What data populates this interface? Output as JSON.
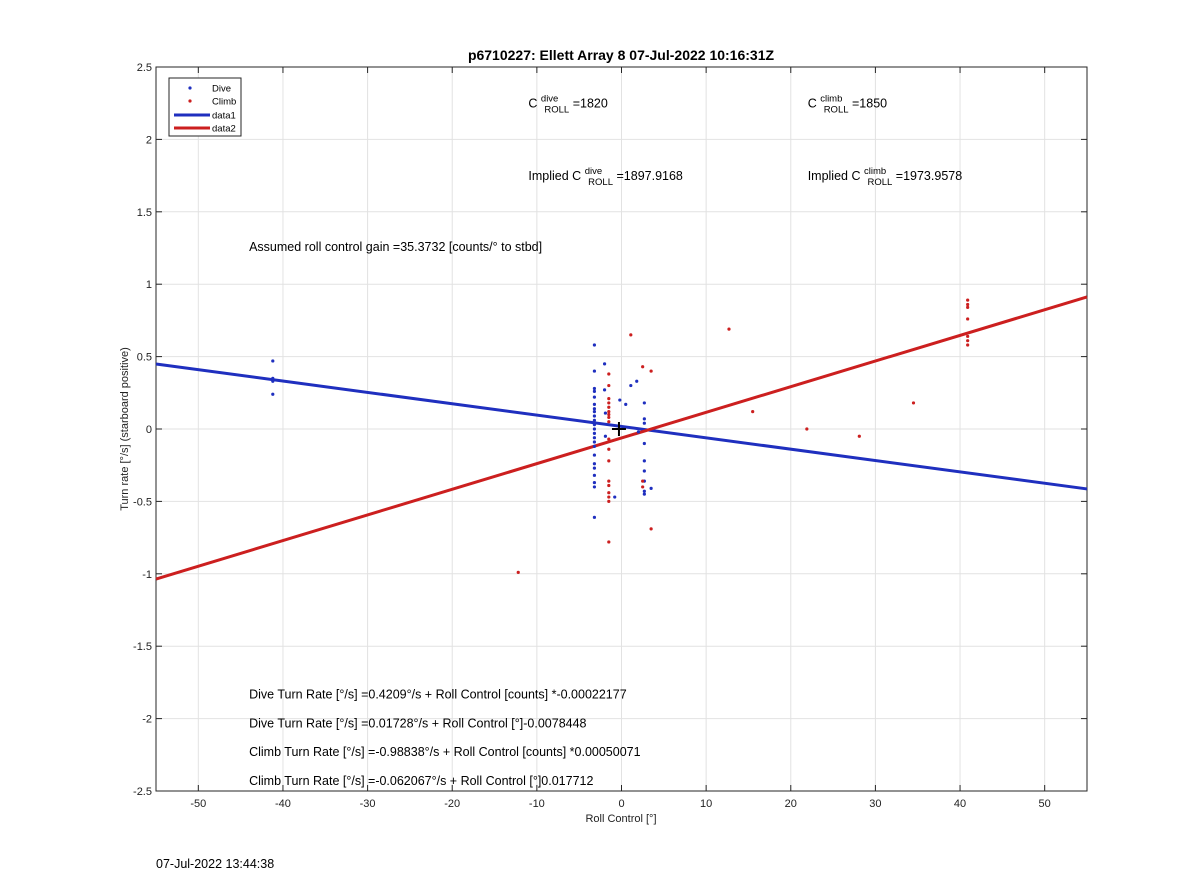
{
  "colors": {
    "dive": "#1f2fbf",
    "climb": "#cc1f1f",
    "grid": "#e2e2e2",
    "axis": "#262626"
  },
  "footer": {
    "timestamp": "07-Jul-2022 13:44:38"
  },
  "chart_data": {
    "type": "scatter",
    "title": "p6710227: Ellett Array 8 07-Jul-2022 10:16:31Z",
    "xlabel": "Roll Control [°]",
    "ylabel": "Turn rate [°/s] (starboard positive)",
    "xlim": [
      -55,
      55
    ],
    "ylim": [
      -2.5,
      2.5
    ],
    "xticks": [
      -50,
      -40,
      -30,
      -20,
      -10,
      0,
      10,
      20,
      30,
      40,
      50
    ],
    "xtick_labels": [
      "-50",
      "-40",
      "-30",
      "-20",
      "-10",
      "0",
      "10",
      "20",
      "30",
      "40",
      "50"
    ],
    "yticks": [
      -2.5,
      -2,
      -1.5,
      -1,
      -0.5,
      0,
      0.5,
      1,
      1.5,
      2,
      2.5
    ],
    "ytick_labels": [
      "-2.5",
      "-2",
      "-1.5",
      "-1",
      "-0.5",
      "0",
      "0.5",
      "1",
      "1.5",
      "2",
      "2.5"
    ],
    "grid": true,
    "legend_position": "top-left",
    "legend": [
      {
        "label": "Dive",
        "kind": "marker",
        "color": "#1f2fbf"
      },
      {
        "label": "Climb",
        "kind": "marker",
        "color": "#cc1f1f"
      },
      {
        "label": "data1",
        "kind": "line",
        "color": "#1f2fbf"
      },
      {
        "label": "data2",
        "kind": "line",
        "color": "#cc1f1f"
      }
    ],
    "series": [
      {
        "name": "Dive",
        "kind": "points",
        "color": "#1f2fbf",
        "points": [
          [
            -41.2,
            0.47
          ],
          [
            -41.2,
            0.35
          ],
          [
            -41.2,
            0.33
          ],
          [
            -41.2,
            0.24
          ],
          [
            -3.2,
            0.58
          ],
          [
            -3.2,
            0.4
          ],
          [
            -3.2,
            0.28
          ],
          [
            -3.2,
            0.26
          ],
          [
            -3.2,
            0.22
          ],
          [
            -3.2,
            0.17
          ],
          [
            -3.2,
            0.14
          ],
          [
            -3.2,
            0.12
          ],
          [
            -3.2,
            0.09
          ],
          [
            -3.2,
            0.06
          ],
          [
            -3.2,
            0.03
          ],
          [
            -3.2,
            0.0
          ],
          [
            -3.2,
            -0.03
          ],
          [
            -3.2,
            -0.06
          ],
          [
            -3.2,
            -0.09
          ],
          [
            -3.2,
            -0.12
          ],
          [
            -3.2,
            -0.18
          ],
          [
            -3.2,
            -0.24
          ],
          [
            -3.2,
            -0.27
          ],
          [
            -3.2,
            -0.32
          ],
          [
            -3.2,
            -0.37
          ],
          [
            -3.2,
            -0.4
          ],
          [
            -3.2,
            -0.61
          ],
          [
            -2.0,
            0.45
          ],
          [
            -2.0,
            0.27
          ],
          [
            -1.9,
            0.11
          ],
          [
            -1.9,
            -0.05
          ],
          [
            -0.8,
            -0.47
          ],
          [
            -0.2,
            0.2
          ],
          [
            0.5,
            0.17
          ],
          [
            1.1,
            0.3
          ],
          [
            1.8,
            0.33
          ],
          [
            2.7,
            0.18
          ],
          [
            2.7,
            0.07
          ],
          [
            2.7,
            0.04
          ],
          [
            2.7,
            -0.1
          ],
          [
            2.7,
            -0.22
          ],
          [
            2.7,
            -0.29
          ],
          [
            2.7,
            -0.36
          ],
          [
            2.7,
            -0.43
          ],
          [
            2.7,
            -0.45
          ],
          [
            3.5,
            -0.41
          ],
          [
            2.0,
            -0.02
          ]
        ]
      },
      {
        "name": "Climb",
        "kind": "points",
        "color": "#cc1f1f",
        "points": [
          [
            -12.2,
            -0.99
          ],
          [
            -1.5,
            0.38
          ],
          [
            -1.5,
            0.3
          ],
          [
            -1.5,
            0.21
          ],
          [
            -1.5,
            0.18
          ],
          [
            -1.5,
            0.15
          ],
          [
            -1.5,
            0.12
          ],
          [
            -1.5,
            0.1
          ],
          [
            -1.5,
            0.08
          ],
          [
            -1.5,
            0.05
          ],
          [
            -1.5,
            -0.07
          ],
          [
            -1.5,
            -0.14
          ],
          [
            -1.5,
            -0.22
          ],
          [
            -1.5,
            -0.36
          ],
          [
            -1.5,
            -0.39
          ],
          [
            -1.5,
            -0.44
          ],
          [
            -1.5,
            -0.47
          ],
          [
            -1.5,
            -0.5
          ],
          [
            -1.5,
            -0.78
          ],
          [
            1.1,
            0.65
          ],
          [
            2.5,
            0.43
          ],
          [
            2.5,
            -0.36
          ],
          [
            2.5,
            -0.4
          ],
          [
            3.5,
            0.4
          ],
          [
            3.5,
            -0.69
          ],
          [
            12.7,
            0.69
          ],
          [
            15.5,
            0.12
          ],
          [
            21.9,
            0.0
          ],
          [
            28.1,
            -0.05
          ],
          [
            34.5,
            0.18
          ],
          [
            40.9,
            0.89
          ],
          [
            40.9,
            0.86
          ],
          [
            40.9,
            0.84
          ],
          [
            40.9,
            0.76
          ],
          [
            40.9,
            0.64
          ],
          [
            40.9,
            0.61
          ],
          [
            40.9,
            0.58
          ]
        ]
      },
      {
        "name": "data1",
        "kind": "line",
        "color": "#1f2fbf",
        "points": [
          [
            -55,
            0.4489
          ],
          [
            55,
            -0.4139
          ]
        ]
      },
      {
        "name": "data2",
        "kind": "line",
        "color": "#cc1f1f",
        "points": [
          [
            -55,
            -1.0362
          ],
          [
            55,
            0.9122
          ]
        ]
      }
    ],
    "marker": {
      "x": -0.3,
      "y": 0.0,
      "symbol": "+"
    },
    "annotations": {
      "c_dive": {
        "base": "C",
        "sup": "dive",
        "sub": "ROLL",
        "suffix": " =1820",
        "x": -11,
        "y": 2.22
      },
      "c_climb": {
        "base": "C",
        "sup": "climb",
        "sub": "ROLL",
        "suffix": " =1850",
        "x": 22,
        "y": 2.22
      },
      "implied_dive": {
        "prefix": "Implied ",
        "base": "C",
        "sup": "dive",
        "sub": "ROLL",
        "suffix": " =1897.9168",
        "x": -11,
        "y": 1.72
      },
      "implied_climb": {
        "prefix": "Implied ",
        "base": "C",
        "sup": "climb",
        "sub": "ROLL",
        "suffix": " =1973.9578",
        "x": 22,
        "y": 1.72
      },
      "gain": {
        "text": "Assumed roll control gain =35.3732 [counts/° to stbd]",
        "x": -44,
        "y": 1.23
      },
      "fit1": {
        "text": "Dive Turn Rate [°/s] =0.4209°/s + Roll Control [counts] *-0.00022177",
        "x": -44,
        "y": -1.86
      },
      "fit2": {
        "text": "Dive Turn Rate [°/s] =0.01728°/s + Roll Control [°]-0.0078448",
        "x": -44,
        "y": -2.06
      },
      "fit3": {
        "text": "Climb Turn Rate [°/s] =-0.98838°/s + Roll Control [counts] *0.00050071",
        "x": -44,
        "y": -2.26
      },
      "fit4": {
        "text": "Climb Turn Rate [°/s] =-0.062067°/s + Roll Control [°]0.017712",
        "x": -44,
        "y": -2.46
      }
    }
  }
}
